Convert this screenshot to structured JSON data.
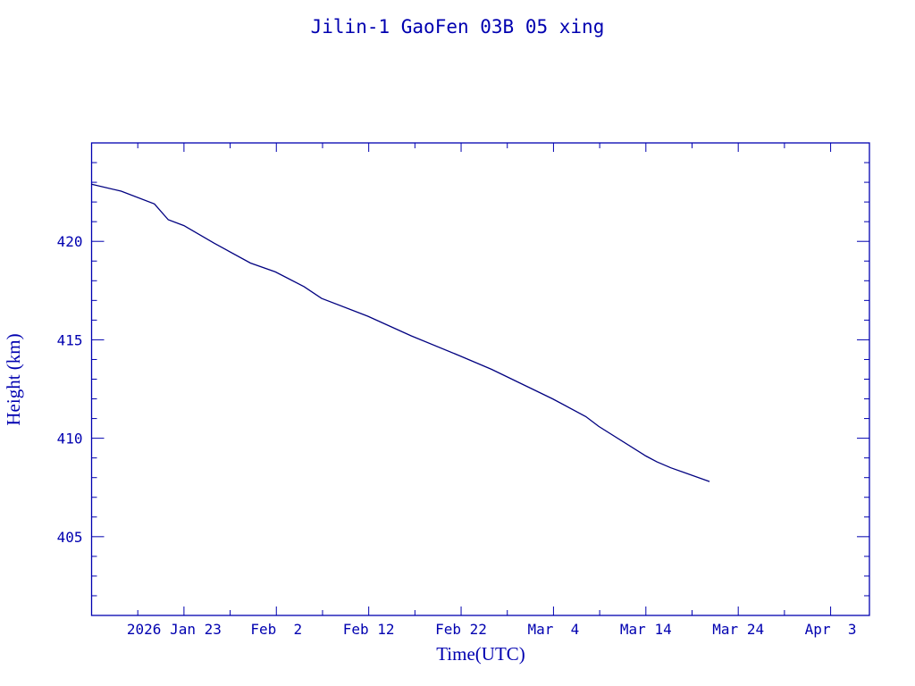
{
  "chart_data": {
    "type": "line",
    "title": "Jilin-1 GaoFen 03B 05 xing",
    "xlabel": "Time(UTC)",
    "ylabel": "Height (km)",
    "x_units": "day of year 2026 (0 = Jan 1)",
    "xlim": [
      12,
      96.2
    ],
    "ylim": [
      401,
      425
    ],
    "grid": false,
    "x_ticks": [
      {
        "value": 22,
        "label": "2026 Jan 23"
      },
      {
        "value": 32,
        "label": "Feb  2"
      },
      {
        "value": 42,
        "label": "Feb 12"
      },
      {
        "value": 52,
        "label": "Feb 22"
      },
      {
        "value": 62,
        "label": "Mar  4"
      },
      {
        "value": 72,
        "label": "Mar 14"
      },
      {
        "value": 82,
        "label": "Mar 24"
      },
      {
        "value": 92,
        "label": "Apr  3"
      }
    ],
    "x_minor_step": 5,
    "y_ticks": [
      405,
      410,
      415,
      420
    ],
    "y_minor_step": 1,
    "series": [
      {
        "name": "Height",
        "color": "#000080",
        "x": [
          12.0,
          15.2,
          18.8,
          20.3,
          22.0,
          25.3,
          29.2,
          31.9,
          35.0,
          36.9,
          41.9,
          46.6,
          51.8,
          55.3,
          61.9,
          65.5,
          66.9,
          72.0,
          73.2,
          74.7,
          78.9
        ],
        "y": [
          422.9,
          422.55,
          421.9,
          421.1,
          420.8,
          419.9,
          418.9,
          418.45,
          417.7,
          417.1,
          416.2,
          415.2,
          414.2,
          413.5,
          412.0,
          411.1,
          410.6,
          409.1,
          408.8,
          408.5,
          407.8
        ]
      }
    ],
    "axis_color": "#0000b0"
  }
}
